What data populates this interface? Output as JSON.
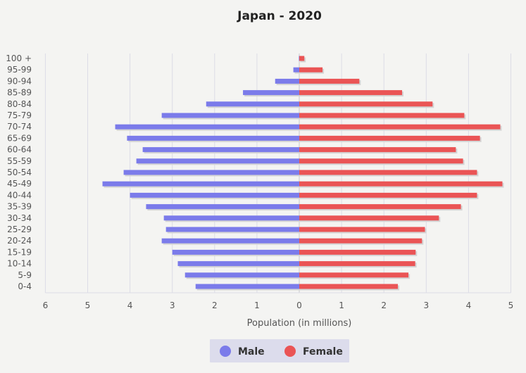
{
  "chart_data": {
    "type": "bar",
    "orientation": "horizontal",
    "title": "Japan - 2020",
    "xlabel": "Population (in millions)",
    "ylabel": "",
    "categories": [
      "0-4",
      "5-9",
      "10-14",
      "15-19",
      "20-24",
      "25-29",
      "30-34",
      "35-39",
      "40-44",
      "45-49",
      "50-54",
      "55-59",
      "60-64",
      "65-69",
      "70-74",
      "75-79",
      "80-84",
      "85-89",
      "90-94",
      "95-99",
      "100 +"
    ],
    "x_ticks": [
      "6",
      "5",
      "4",
      "3",
      "2",
      "1",
      "0",
      "1",
      "2",
      "3",
      "4",
      "5"
    ],
    "xlim": [
      -6,
      5
    ],
    "grid": true,
    "legend_position": "bottom-center",
    "series": [
      {
        "name": "Male",
        "color": "#7b7bea",
        "values": [
          2.45,
          2.7,
          2.87,
          3.0,
          3.25,
          3.15,
          3.2,
          3.62,
          4.0,
          4.65,
          4.15,
          3.85,
          3.7,
          4.07,
          4.35,
          3.25,
          2.2,
          1.33,
          0.57,
          0.14,
          0.01
        ]
      },
      {
        "name": "Female",
        "color": "#ea5455",
        "values": [
          2.33,
          2.58,
          2.74,
          2.75,
          2.9,
          2.97,
          3.3,
          3.82,
          4.2,
          4.8,
          4.2,
          3.87,
          3.7,
          4.27,
          4.75,
          3.9,
          3.15,
          2.43,
          1.42,
          0.55,
          0.12
        ]
      }
    ]
  }
}
